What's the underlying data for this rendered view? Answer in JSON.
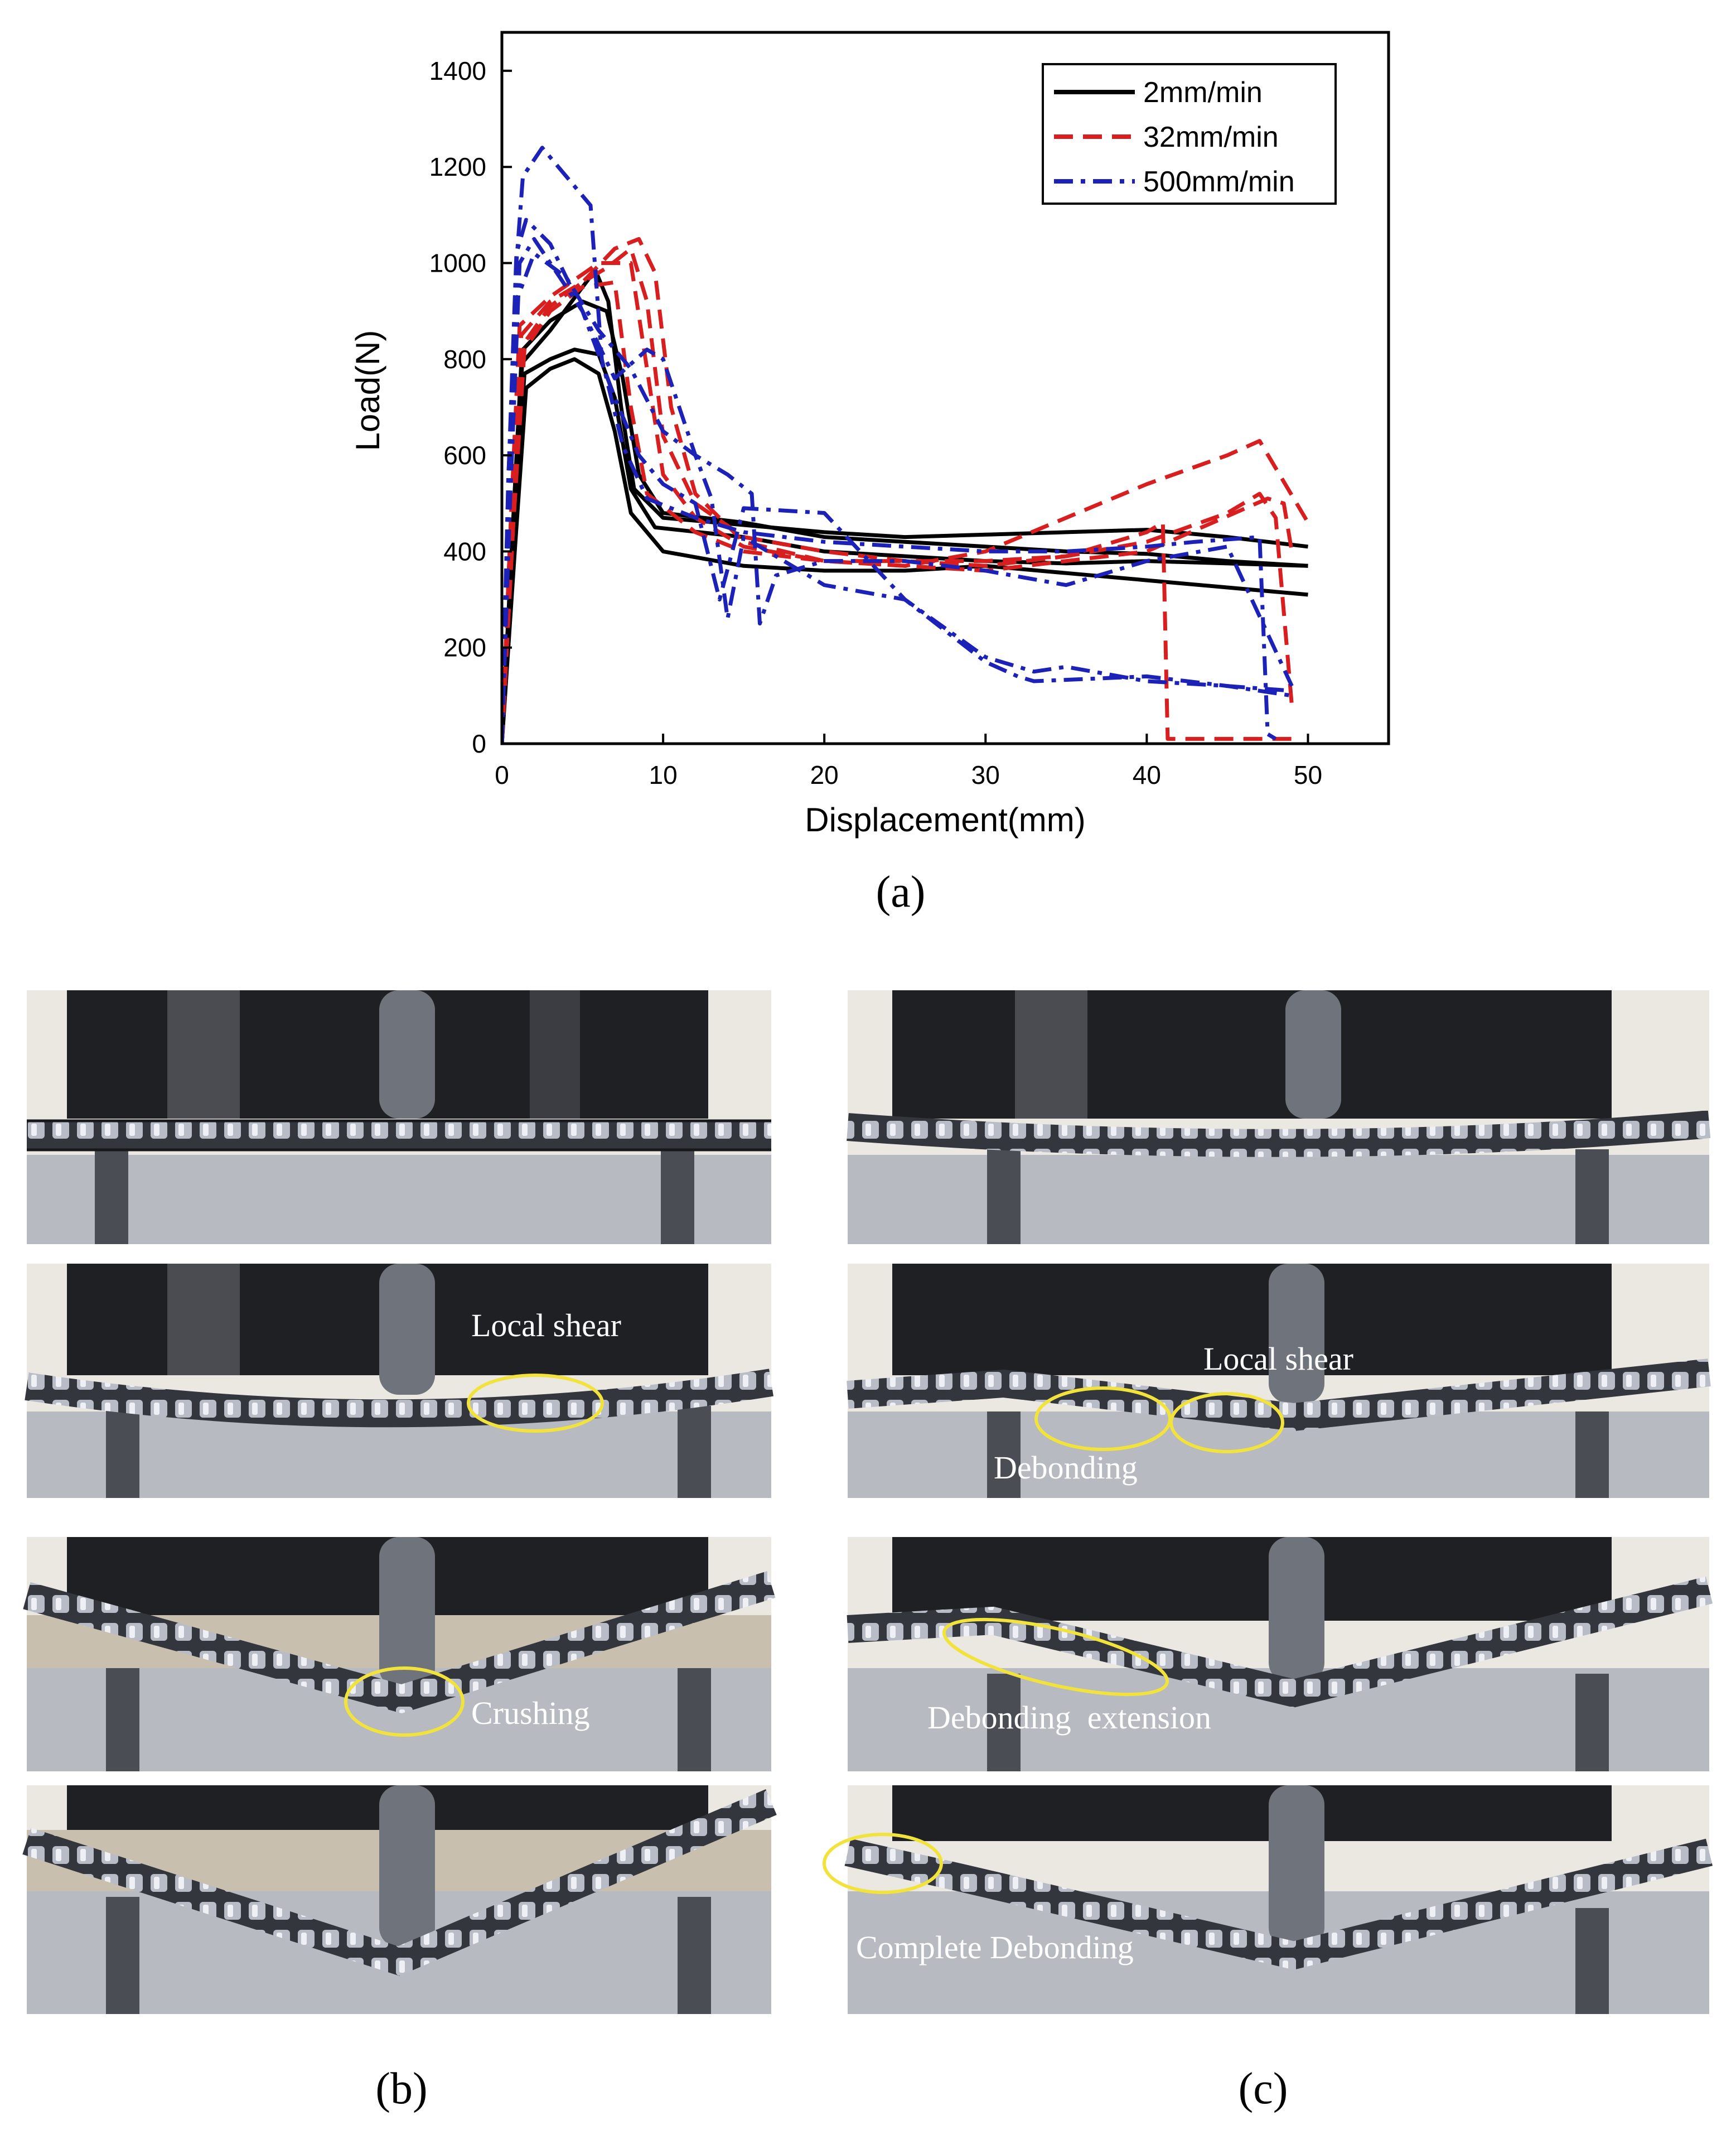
{
  "chart_data": {
    "type": "line",
    "title": "",
    "xlabel": "Displacement(mm)",
    "ylabel": "Load(N)",
    "xlim": [
      0,
      55
    ],
    "ylim": [
      0,
      1480
    ],
    "x_ticks": [
      "0",
      "10",
      "20",
      "30",
      "40",
      "50"
    ],
    "y_ticks": [
      "0",
      "200",
      "400",
      "600",
      "800",
      "1000",
      "1200",
      "1400"
    ],
    "grid": false,
    "legend_position": "top-right",
    "series": [
      {
        "name": "2mm/min",
        "color": "#000000",
        "style": "solid",
        "curves": [
          [
            [
              0,
              0
            ],
            [
              0.6,
              400
            ],
            [
              1.2,
              790
            ],
            [
              3,
              860
            ],
            [
              5,
              950
            ],
            [
              5.8,
              985
            ],
            [
              6.6,
              920
            ],
            [
              7.4,
              700
            ],
            [
              8.2,
              530
            ],
            [
              10,
              470
            ],
            [
              15,
              455
            ],
            [
              20,
              440
            ],
            [
              25,
              430
            ],
            [
              30,
              435
            ],
            [
              35,
              440
            ],
            [
              40,
              445
            ],
            [
              45,
              430
            ],
            [
              50,
              410
            ]
          ],
          [
            [
              0,
              0
            ],
            [
              0.7,
              420
            ],
            [
              1.3,
              820
            ],
            [
              3,
              880
            ],
            [
              5,
              920
            ],
            [
              6.5,
              900
            ],
            [
              7.5,
              760
            ],
            [
              8.5,
              560
            ],
            [
              10,
              480
            ],
            [
              15,
              460
            ],
            [
              20,
              430
            ],
            [
              25,
              420
            ],
            [
              30,
              410
            ],
            [
              35,
              400
            ],
            [
              40,
              395
            ],
            [
              45,
              380
            ],
            [
              50,
              370
            ]
          ],
          [
            [
              0,
              0
            ],
            [
              0.7,
              420
            ],
            [
              1.4,
              770
            ],
            [
              3,
              800
            ],
            [
              4.5,
              820
            ],
            [
              6,
              810
            ],
            [
              7,
              720
            ],
            [
              8,
              530
            ],
            [
              9.5,
              450
            ],
            [
              15,
              430
            ],
            [
              20,
              400
            ],
            [
              25,
              390
            ],
            [
              30,
              380
            ],
            [
              35,
              375
            ],
            [
              40,
              380
            ],
            [
              45,
              375
            ],
            [
              50,
              370
            ]
          ],
          [
            [
              0,
              0
            ],
            [
              0.8,
              400
            ],
            [
              1.5,
              740
            ],
            [
              3,
              780
            ],
            [
              4.5,
              800
            ],
            [
              6,
              770
            ],
            [
              7,
              650
            ],
            [
              8,
              480
            ],
            [
              10,
              400
            ],
            [
              15,
              370
            ],
            [
              20,
              360
            ],
            [
              25,
              360
            ],
            [
              30,
              370
            ],
            [
              35,
              355
            ],
            [
              40,
              340
            ],
            [
              45,
              325
            ],
            [
              50,
              310
            ]
          ]
        ]
      },
      {
        "name": "32mm/min",
        "color": "#d81e1e",
        "style": "dashed",
        "curves": [
          [
            [
              0,
              0
            ],
            [
              0.6,
              500
            ],
            [
              1.2,
              850
            ],
            [
              3,
              920
            ],
            [
              5,
              960
            ],
            [
              7,
              1030
            ],
            [
              8.5,
              1050
            ],
            [
              9.5,
              980
            ],
            [
              10.5,
              700
            ],
            [
              12,
              520
            ],
            [
              15,
              420
            ],
            [
              20,
              380
            ],
            [
              25,
              370
            ],
            [
              30,
              400
            ],
            [
              35,
              470
            ],
            [
              40,
              540
            ],
            [
              45,
              600
            ],
            [
              47,
              630
            ],
            [
              50,
              460
            ]
          ],
          [
            [
              0,
              0
            ],
            [
              0.6,
              500
            ],
            [
              1.1,
              870
            ],
            [
              3,
              930
            ],
            [
              6,
              1000
            ],
            [
              8,
              1000
            ],
            [
              9,
              780
            ],
            [
              10,
              560
            ],
            [
              12,
              470
            ],
            [
              15,
              410
            ],
            [
              20,
              380
            ],
            [
              25,
              380
            ],
            [
              30,
              370
            ],
            [
              35,
              390
            ],
            [
              40,
              440
            ],
            [
              41,
              460
            ],
            [
              41.3,
              10
            ],
            [
              45,
              10
            ],
            [
              49,
              10
            ]
          ],
          [
            [
              0,
              0
            ],
            [
              0.7,
              500
            ],
            [
              1.3,
              830
            ],
            [
              3,
              910
            ],
            [
              5,
              960
            ],
            [
              6.5,
              990
            ],
            [
              8,
              1030
            ],
            [
              9,
              920
            ],
            [
              10,
              640
            ],
            [
              12,
              500
            ],
            [
              15,
              430
            ],
            [
              20,
              400
            ],
            [
              25,
              380
            ],
            [
              30,
              380
            ],
            [
              35,
              390
            ],
            [
              40,
              420
            ],
            [
              45,
              480
            ],
            [
              47,
              520
            ],
            [
              48,
              470
            ],
            [
              49,
              80
            ]
          ],
          [
            [
              0,
              0
            ],
            [
              0.7,
              450
            ],
            [
              1.4,
              820
            ],
            [
              3,
              900
            ],
            [
              5,
              950
            ],
            [
              7,
              960
            ],
            [
              8,
              700
            ],
            [
              9,
              520
            ],
            [
              12,
              440
            ],
            [
              15,
              400
            ],
            [
              20,
              380
            ],
            [
              25,
              370
            ],
            [
              30,
              360
            ],
            [
              40,
              400
            ],
            [
              47.5,
              510
            ],
            [
              48.5,
              500
            ],
            [
              49,
              400
            ]
          ]
        ]
      },
      {
        "name": "500mm/min",
        "color": "#1c22b8",
        "style": "dashdot",
        "curves": [
          [
            [
              0,
              0
            ],
            [
              0.4,
              500
            ],
            [
              0.9,
              1000
            ],
            [
              1.3,
              1180
            ],
            [
              2.5,
              1240
            ],
            [
              4,
              1180
            ],
            [
              5.5,
              1120
            ],
            [
              6.2,
              800
            ],
            [
              7.5,
              620
            ],
            [
              9,
              510
            ],
            [
              12,
              470
            ],
            [
              15,
              440
            ],
            [
              20,
              420
            ],
            [
              25,
              410
            ],
            [
              30,
              400
            ],
            [
              35,
              400
            ],
            [
              40,
              410
            ],
            [
              43,
              420
            ],
            [
              47,
              430
            ],
            [
              47.5,
              20
            ],
            [
              48,
              10
            ]
          ],
          [
            [
              0,
              0
            ],
            [
              0.4,
              550
            ],
            [
              0.9,
              1020
            ],
            [
              1.5,
              1090
            ],
            [
              3,
              1040
            ],
            [
              5,
              900
            ],
            [
              6,
              830
            ],
            [
              7,
              760
            ],
            [
              9,
              820
            ],
            [
              10,
              800
            ],
            [
              12,
              600
            ],
            [
              14,
              560
            ],
            [
              15.5,
              520
            ],
            [
              16,
              250
            ],
            [
              17,
              350
            ],
            [
              20,
              380
            ],
            [
              25,
              380
            ],
            [
              30,
              360
            ],
            [
              35,
              330
            ],
            [
              40,
              380
            ],
            [
              45,
              410
            ],
            [
              49,
              120
            ]
          ],
          [
            [
              0,
              0
            ],
            [
              0.4,
              560
            ],
            [
              1,
              930
            ],
            [
              2,
              1020
            ],
            [
              4,
              970
            ],
            [
              6,
              860
            ],
            [
              8,
              780
            ],
            [
              10,
              650
            ],
            [
              12,
              600
            ],
            [
              13,
              510
            ],
            [
              14,
              260
            ],
            [
              15,
              430
            ],
            [
              20,
              330
            ],
            [
              25,
              300
            ],
            [
              30,
              170
            ],
            [
              32,
              140
            ],
            [
              33,
              130
            ],
            [
              40,
              140
            ],
            [
              45,
              120
            ],
            [
              49,
              100
            ]
          ],
          [
            [
              0,
              0
            ],
            [
              0.5,
              500
            ],
            [
              1.1,
              1000
            ],
            [
              2,
              1050
            ],
            [
              3,
              1000
            ],
            [
              5,
              900
            ],
            [
              7,
              720
            ],
            [
              8.5,
              600
            ],
            [
              10,
              540
            ],
            [
              12,
              500
            ],
            [
              13.5,
              300
            ],
            [
              15,
              490
            ],
            [
              20,
              480
            ],
            [
              25,
              300
            ],
            [
              30,
              180
            ],
            [
              33,
              150
            ],
            [
              35,
              160
            ],
            [
              40,
              130
            ],
            [
              45,
              120
            ],
            [
              49,
              110
            ]
          ]
        ]
      }
    ]
  },
  "captions": {
    "a": "(a)",
    "b": "(b)",
    "c": "(c)"
  },
  "annotations": {
    "b_local_shear": "Local shear",
    "b_crushing": "Crushing",
    "c_local_shear": "Local shear",
    "c_debonding": "Debonding",
    "c_debonding_extension": "Debonding  extension",
    "c_complete_debonding": "Complete Debonding"
  },
  "colors": {
    "highlight_ellipse": "#f2e23c",
    "label_text": "#ffffff",
    "photo_wall": "#ebe7e1",
    "machine_dark": "#1f2023",
    "beam": "#4b4d54"
  }
}
